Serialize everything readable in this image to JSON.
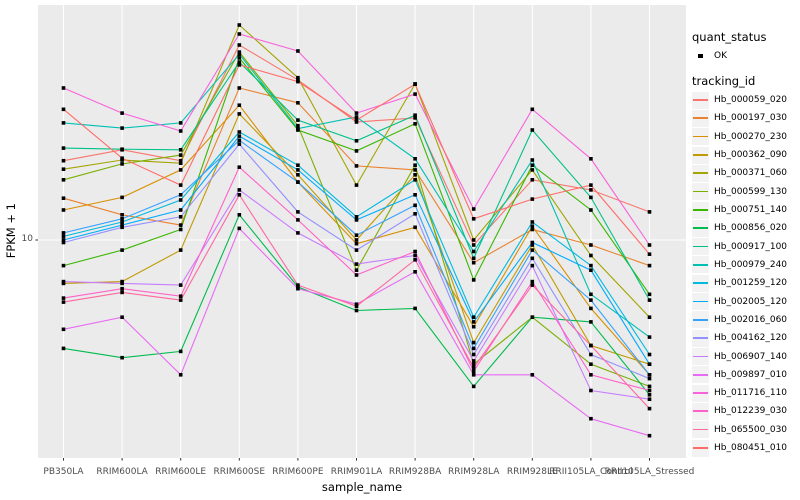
{
  "chart": {
    "panel_bg": "#EBEBEB",
    "grid_color": "#FFFFFF",
    "axis_text_color": "#4D4D4D",
    "tick_mark_color": "#333333",
    "y_axis": {
      "title": "FPKM + 1",
      "tick_label": "10",
      "scale": "log10"
    },
    "x_axis": {
      "title": "sample_name"
    },
    "legend": {
      "quant_status": {
        "title": "quant_status",
        "items": [
          {
            "label": "OK",
            "marker": "black-square"
          }
        ]
      },
      "tracking_id": {
        "title": "tracking_id"
      }
    }
  },
  "chart_data": {
    "type": "line",
    "title": "",
    "xlabel": "sample_name",
    "ylabel": "FPKM + 1",
    "y_scale": "log10",
    "y_ticks": [
      10
    ],
    "grid": "major-on",
    "legend_position": "right",
    "point_marker": {
      "shape": "square",
      "color": "#000000",
      "legend_label": "OK"
    },
    "categories": [
      "PB350LA",
      "RRIM600LA",
      "RRIM600LE",
      "RRIM600SE",
      "RRIM600PE",
      "RRIM901LA",
      "RRIM928BA",
      "RRIM928LA",
      "RRIM928LE",
      "RRII105LA_Control",
      "RRII105LA_Stressed"
    ],
    "series": [
      {
        "name": "Hb_000059_020",
        "color": "#F8766D",
        "values": [
          19.2,
          21.0,
          19.2,
          49.7,
          37.3,
          26.4,
          27.3,
          9.6,
          16.4,
          15.1,
          12.6
        ]
      },
      {
        "name": "Hb_000197_030",
        "color": "#EA8331",
        "values": [
          14.1,
          12.3,
          11.3,
          34.9,
          30.9,
          18.4,
          17.8,
          8.3,
          10.9,
          9.6,
          8.1
        ]
      },
      {
        "name": "Hb_000270_230",
        "color": "#D89000",
        "values": [
          12.8,
          14.2,
          17.8,
          30.3,
          16.1,
          9.7,
          11.1,
          4.9,
          11.2,
          5.7,
          3.3
        ]
      },
      {
        "name": "Hb_000362_090",
        "color": "#C09B00",
        "values": [
          7.0,
          7.1,
          9.2,
          28.2,
          17.1,
          10.0,
          17.1,
          4.3,
          9.6,
          4.2,
          3.6
        ]
      },
      {
        "name": "Hb_000371_060",
        "color": "#A3A500",
        "values": [
          17.9,
          19.3,
          18.8,
          58.6,
          38.0,
          15.7,
          36.1,
          10.0,
          17.8,
          8.8,
          5.3
        ]
      },
      {
        "name": "Hb_000599_130",
        "color": "#7CAE00",
        "values": [
          16.4,
          18.7,
          20.1,
          46.9,
          25.6,
          7.8,
          18.5,
          3.6,
          5.3,
          3.6,
          3.0
        ]
      },
      {
        "name": "Hb_000751_140",
        "color": "#39B600",
        "values": [
          8.1,
          9.2,
          10.9,
          44.7,
          24.7,
          20.8,
          26.0,
          7.2,
          18.5,
          12.8,
          6.4
        ]
      },
      {
        "name": "Hb_000856_020",
        "color": "#00BB4E",
        "values": [
          4.1,
          3.8,
          4.0,
          12.3,
          6.8,
          5.6,
          5.7,
          3.0,
          5.3,
          5.1,
          2.8
        ]
      },
      {
        "name": "Hb_000917_100",
        "color": "#00C087",
        "values": [
          21.3,
          21.1,
          21.0,
          43.2,
          26.8,
          22.6,
          27.9,
          8.6,
          24.7,
          14.2,
          6.1
        ]
      },
      {
        "name": "Hb_000979_240",
        "color": "#00C0B2",
        "values": [
          26.2,
          25.1,
          26.2,
          46.1,
          25.0,
          27.5,
          19.5,
          9.1,
          19.3,
          6.4,
          4.5
        ]
      },
      {
        "name": "Hb_001259_120",
        "color": "#00BAE0",
        "values": [
          10.3,
          11.6,
          13.9,
          24.3,
          18.5,
          12.1,
          16.4,
          5.3,
          11.6,
          8.1,
          3.9
        ]
      },
      {
        "name": "Hb_002005_120",
        "color": "#00ACFC",
        "values": [
          10.0,
          11.3,
          12.8,
          23.5,
          17.8,
          11.8,
          14.5,
          5.1,
          9.8,
          7.8,
          3.6
        ]
      },
      {
        "name": "Hb_002016_060",
        "color": "#35A2FF",
        "values": [
          10.6,
          11.9,
          14.5,
          22.7,
          16.1,
          10.4,
          13.3,
          4.1,
          9.2,
          6.1,
          3.3
        ]
      },
      {
        "name": "Hb_004162_120",
        "color": "#9590FF",
        "values": [
          9.8,
          11.1,
          12.1,
          22.0,
          12.6,
          9.2,
          12.4,
          3.9,
          8.6,
          3.9,
          3.2
        ]
      },
      {
        "name": "Hb_006907_140",
        "color": "#C77CFF",
        "values": [
          7.1,
          7.0,
          6.9,
          15.1,
          10.6,
          8.2,
          8.8,
          3.7,
          8.1,
          2.9,
          2.7
        ]
      },
      {
        "name": "Hb_009897_010",
        "color": "#E76BF3",
        "values": [
          4.8,
          5.3,
          3.3,
          11.0,
          6.7,
          5.9,
          7.7,
          3.3,
          3.3,
          2.3,
          2.0
        ]
      },
      {
        "name": "Hb_011716_110",
        "color": "#FA62DB",
        "values": [
          34.9,
          28.4,
          24.5,
          54.4,
          47.3,
          28.4,
          33.2,
          12.9,
          29.3,
          19.5,
          9.6
        ]
      },
      {
        "name": "Hb_012239_030",
        "color": "#FF61C9",
        "values": [
          6.2,
          6.7,
          6.3,
          18.2,
          11.8,
          7.5,
          9.1,
          3.4,
          7.1,
          3.3,
          2.9
        ]
      },
      {
        "name": "Hb_065500_030",
        "color": "#FF68A1",
        "values": [
          6.0,
          6.5,
          6.1,
          14.5,
          6.9,
          5.8,
          8.5,
          3.5,
          6.9,
          4.2,
          2.5
        ]
      },
      {
        "name": "Hb_080451_010",
        "color": "#FF6C67",
        "values": [
          29.3,
          19.6,
          15.7,
          42.2,
          36.8,
          26.8,
          36.0,
          11.9,
          14.0,
          15.7,
          8.9
        ]
      }
    ]
  }
}
